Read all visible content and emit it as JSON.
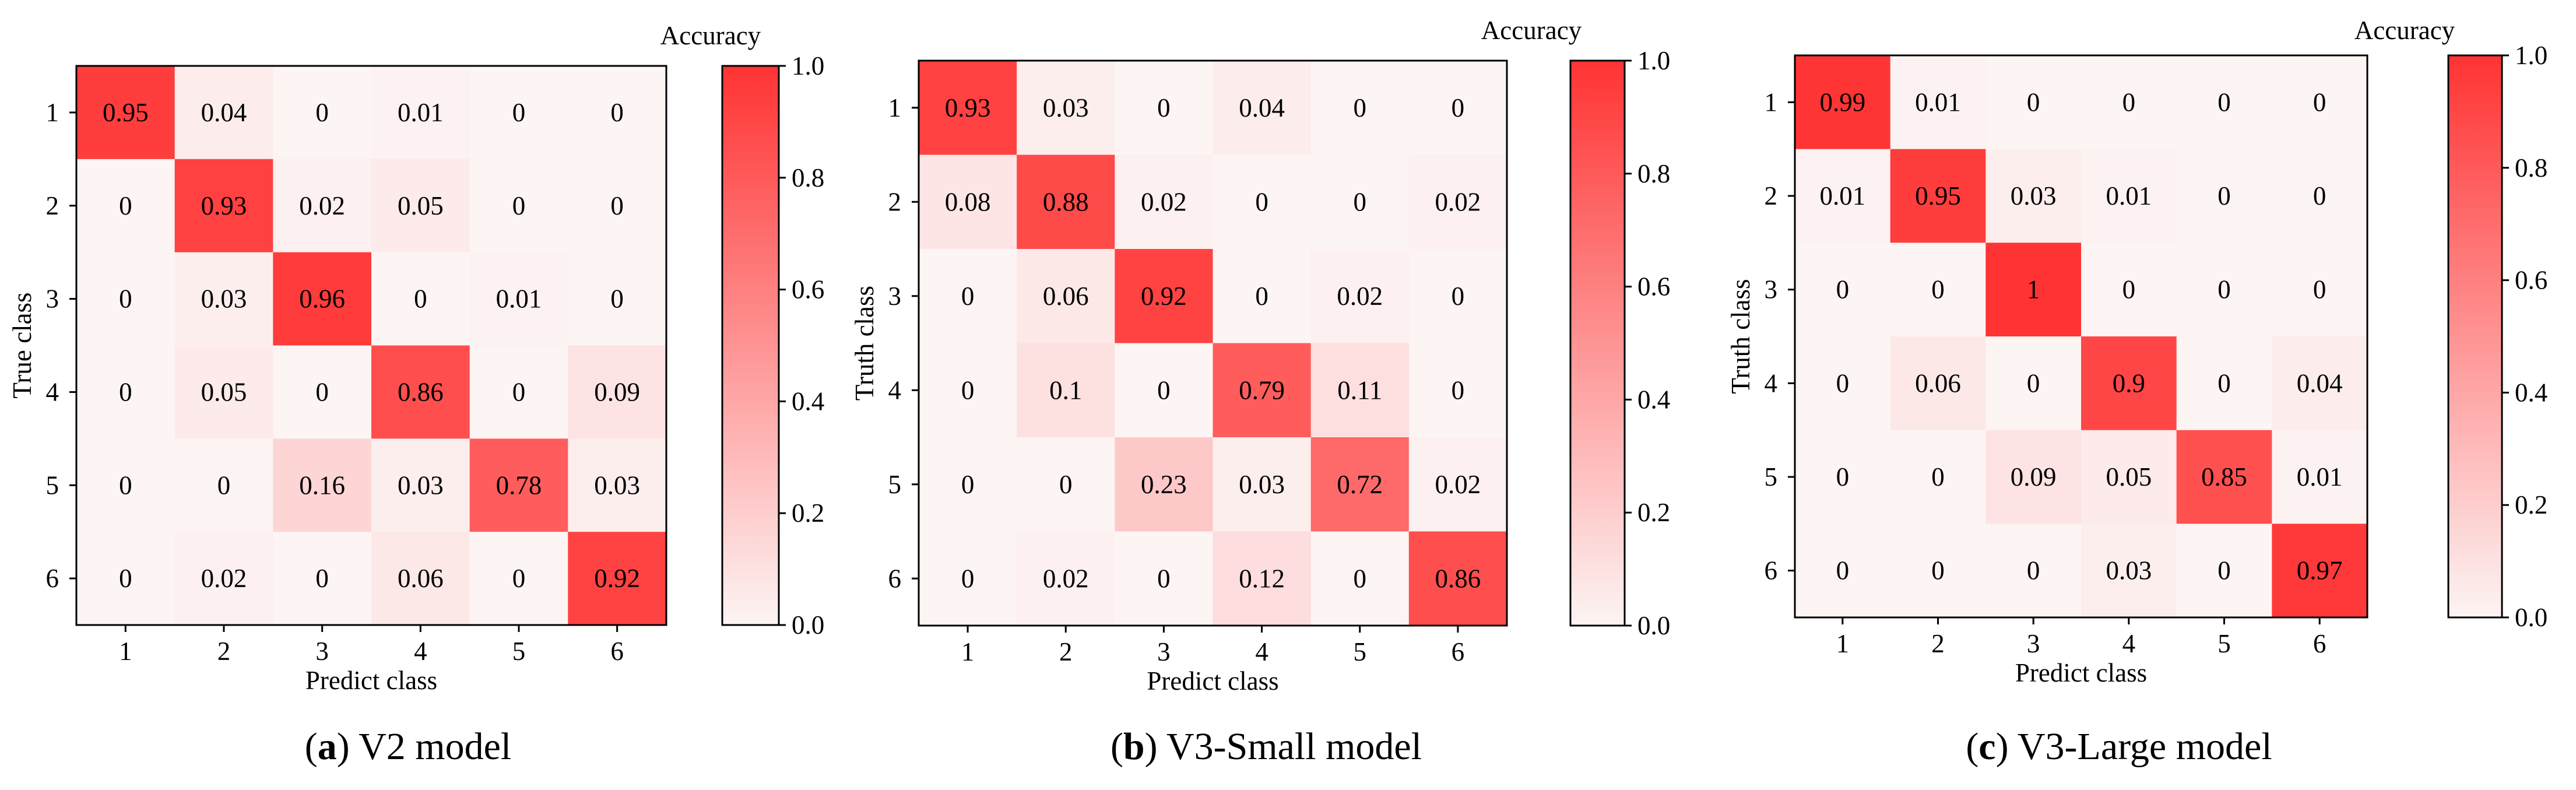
{
  "chart_data": [
    {
      "type": "heatmap",
      "caption_letter": "a",
      "caption_text": "V2 model",
      "xlabel": "Predict class",
      "ylabel": "True class",
      "x_categories": [
        "1",
        "2",
        "3",
        "4",
        "5",
        "6"
      ],
      "y_categories": [
        "1",
        "2",
        "3",
        "4",
        "5",
        "6"
      ],
      "values": [
        [
          0.95,
          0.04,
          0,
          0.01,
          0,
          0
        ],
        [
          0,
          0.93,
          0.02,
          0.05,
          0,
          0
        ],
        [
          0,
          0.03,
          0.96,
          0,
          0.01,
          0
        ],
        [
          0,
          0.05,
          0,
          0.86,
          0,
          0.09
        ],
        [
          0,
          0,
          0.16,
          0.03,
          0.78,
          0.03
        ],
        [
          0,
          0.02,
          0,
          0.06,
          0,
          0.92
        ]
      ],
      "colorbar": {
        "title": "Accuracy",
        "ticks": [
          "1.0",
          "0.8",
          "0.6",
          "0.4",
          "0.2",
          "0.0"
        ],
        "range": [
          0,
          1
        ]
      }
    },
    {
      "type": "heatmap",
      "caption_letter": "b",
      "caption_text": "V3-Small model",
      "xlabel": "Predict class",
      "ylabel": "Truth class",
      "x_categories": [
        "1",
        "2",
        "3",
        "4",
        "5",
        "6"
      ],
      "y_categories": [
        "1",
        "2",
        "3",
        "4",
        "5",
        "6"
      ],
      "values": [
        [
          0.93,
          0.03,
          0,
          0.04,
          0,
          0
        ],
        [
          0.08,
          0.88,
          0.02,
          0,
          0,
          0.02
        ],
        [
          0,
          0.06,
          0.92,
          0,
          0.02,
          0
        ],
        [
          0,
          0.1,
          0,
          0.79,
          0.11,
          0
        ],
        [
          0,
          0,
          0.23,
          0.03,
          0.72,
          0.02
        ],
        [
          0,
          0.02,
          0,
          0.12,
          0,
          0.86
        ]
      ],
      "colorbar": {
        "title": "Accuracy",
        "ticks": [
          "1.0",
          "0.8",
          "0.6",
          "0.4",
          "0.2",
          "0.0"
        ],
        "range": [
          0,
          1
        ]
      }
    },
    {
      "type": "heatmap",
      "caption_letter": "c",
      "caption_text": "V3-Large model",
      "xlabel": "Predict class",
      "ylabel": "Truth class",
      "x_categories": [
        "1",
        "2",
        "3",
        "4",
        "5",
        "6"
      ],
      "y_categories": [
        "1",
        "2",
        "3",
        "4",
        "5",
        "6"
      ],
      "values": [
        [
          0.99,
          0.01,
          0,
          0,
          0,
          0
        ],
        [
          0.01,
          0.95,
          0.03,
          0.01,
          0,
          0
        ],
        [
          0,
          0,
          1,
          0,
          0,
          0
        ],
        [
          0,
          0.06,
          0,
          0.9,
          0,
          0.04
        ],
        [
          0,
          0,
          0.09,
          0.05,
          0.85,
          0.01
        ],
        [
          0,
          0,
          0,
          0.03,
          0,
          0.97
        ]
      ],
      "colorbar": {
        "title": "Accuracy",
        "ticks": [
          "1.0",
          "0.8",
          "0.6",
          "0.4",
          "0.2",
          "0.0"
        ],
        "range": [
          0,
          1
        ]
      }
    }
  ],
  "colors": {
    "low": "#fdf4f4",
    "high": "#ff3333"
  }
}
